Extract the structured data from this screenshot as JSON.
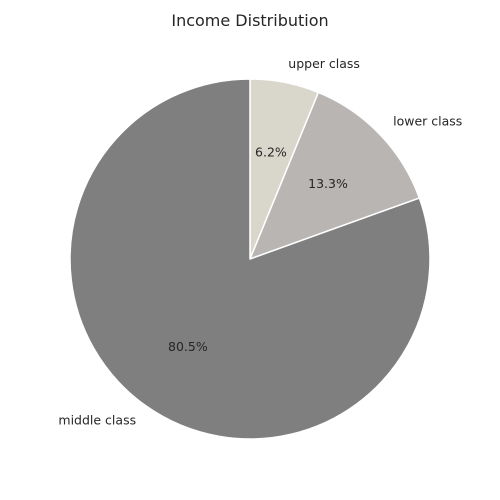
{
  "chart_data": {
    "type": "pie",
    "title": "Income Distribution",
    "slices": [
      {
        "label": "upper class",
        "value": 6.2,
        "pct_label": "6.2%",
        "color": "#d9d6cc"
      },
      {
        "label": "lower class",
        "value": 13.3,
        "pct_label": "13.3%",
        "color": "#b8b5b3"
      },
      {
        "label": "middle class",
        "value": 80.5,
        "pct_label": "80.5%",
        "color": "#7f7f7f"
      }
    ],
    "start_angle": "top (12 o'clock)",
    "direction": "clockwise",
    "wedge_edge_color": "#ffffff",
    "legend": "none"
  }
}
